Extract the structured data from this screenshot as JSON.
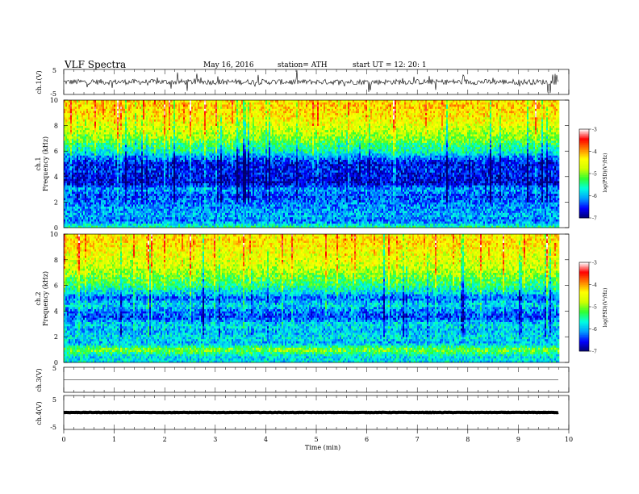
{
  "header": {
    "title": "VLF  Spectra",
    "date": "May 16,  2016",
    "station": "station= ATH",
    "start": "start  UT  =    12: 20: 1"
  },
  "chart_data": [
    {
      "type": "line",
      "id": "ch1-waveform",
      "ylabel": "ch.1(V)",
      "ylim": [
        -5,
        5
      ],
      "yticks": [
        "5",
        "-5"
      ],
      "xlim": [
        0,
        10
      ],
      "baseline": 0,
      "xrange_data": [
        0,
        9.8
      ],
      "color": "#000000"
    },
    {
      "type": "heatmap",
      "id": "ch1-spectrogram",
      "ylabel_top": "ch.1",
      "ylabel": "Frequency  (kHz)",
      "ylim": [
        0,
        10
      ],
      "yticks": [
        "0",
        "2",
        "4",
        "6",
        "8",
        "10"
      ],
      "xlim": [
        0,
        10
      ],
      "xrange_data": [
        0,
        9.8
      ],
      "colorbar": {
        "label": "log(PSD)(V²/Hz)",
        "range": [
          -7,
          -3
        ],
        "ticks": [
          "-3",
          "-4",
          "-5",
          "-6",
          "-7"
        ],
        "colormap": [
          "#000070",
          "#0000ff",
          "#00a0ff",
          "#00ffe0",
          "#30ff30",
          "#d0ff00",
          "#ffff00",
          "#ff8000",
          "#ff0000",
          "#ffffff"
        ]
      },
      "intensity_by_frequency": {
        "frequency_khz": [
          0,
          0.5,
          1,
          1.5,
          2,
          2.5,
          3,
          3.5,
          4,
          4.5,
          5,
          5.5,
          6,
          6.5,
          7,
          7.5,
          8,
          8.5,
          9,
          9.5,
          10
        ],
        "log_psd": [
          -5.4,
          -6.2,
          -6.0,
          -6.1,
          -6.2,
          -6.4,
          -6.0,
          -6.7,
          -6.6,
          -6.5,
          -6.6,
          -6.2,
          -5.6,
          -5.4,
          -5.0,
          -4.8,
          -4.6,
          -4.4,
          -4.3,
          -4.2,
          -4.3
        ]
      }
    },
    {
      "type": "heatmap",
      "id": "ch2-spectrogram",
      "ylabel_top": "ch.2",
      "ylabel": "Frequency  (kHz)",
      "ylim": [
        0,
        10
      ],
      "yticks": [
        "0",
        "2",
        "4",
        "6",
        "8",
        "10"
      ],
      "xlim": [
        0,
        10
      ],
      "xrange_data": [
        0,
        9.8
      ],
      "colorbar": {
        "label": "log(PSD)(V²/Hz)",
        "range": [
          -7,
          -3
        ],
        "ticks": [
          "-3",
          "-4",
          "-5",
          "-6",
          "-7"
        ],
        "colormap": [
          "#000070",
          "#0000ff",
          "#00a0ff",
          "#00ffe0",
          "#30ff30",
          "#d0ff00",
          "#ffff00",
          "#ff8000",
          "#ff0000",
          "#ffffff"
        ]
      },
      "intensity_by_frequency": {
        "frequency_khz": [
          0,
          0.5,
          1,
          1.5,
          2,
          2.5,
          3,
          3.5,
          4,
          4.5,
          5,
          5.5,
          6,
          6.5,
          7,
          7.5,
          8,
          8.5,
          9,
          9.5,
          10
        ],
        "log_psd": [
          -5.8,
          -5.8,
          -5.0,
          -6.0,
          -5.8,
          -6.0,
          -5.8,
          -6.4,
          -6.2,
          -5.8,
          -6.3,
          -5.8,
          -5.4,
          -5.2,
          -4.9,
          -4.7,
          -4.6,
          -4.5,
          -4.4,
          -4.3,
          -4.4
        ]
      }
    },
    {
      "type": "line",
      "id": "ch3-waveform",
      "ylabel": "ch.3(V)",
      "ylim": [
        -5,
        5
      ],
      "yticks": [
        "5"
      ],
      "xlim": [
        0,
        10
      ],
      "baseline": 0,
      "xrange_data": [
        0,
        9.8
      ],
      "color": "#000000"
    },
    {
      "type": "line",
      "id": "ch4-waveform",
      "ylabel": "ch.4(V)",
      "ylim": [
        -5,
        5
      ],
      "yticks": [
        "5",
        "-5"
      ],
      "xlim": [
        0,
        10
      ],
      "baseline": 0,
      "xrange_data": [
        0,
        9.8
      ],
      "color": "#000000"
    }
  ],
  "xaxis": {
    "label": "Time  (min)",
    "ticks": [
      "0",
      "1",
      "2",
      "3",
      "4",
      "5",
      "6",
      "7",
      "8",
      "9",
      "10"
    ]
  }
}
